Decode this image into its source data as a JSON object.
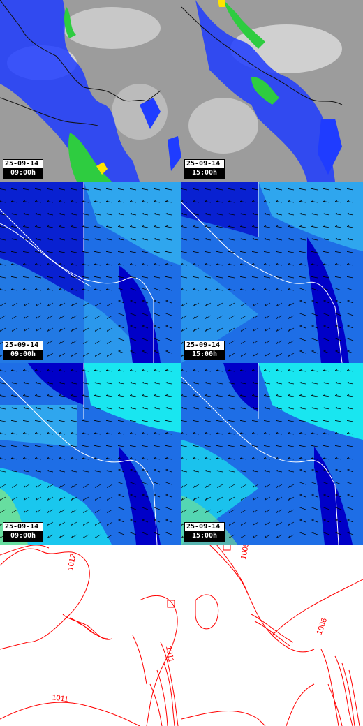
{
  "panels": [
    {
      "row": 0,
      "col": 0,
      "kind": "precip",
      "date": "25-09-14",
      "time": "09:00h"
    },
    {
      "row": 0,
      "col": 1,
      "kind": "precip",
      "date": "25-09-14",
      "time": "15:00h"
    },
    {
      "row": 1,
      "col": 0,
      "kind": "wind_low",
      "date": "25-09-14",
      "time": "09:00h"
    },
    {
      "row": 1,
      "col": 1,
      "kind": "wind_low",
      "date": "25-09-14",
      "time": "15:00h"
    },
    {
      "row": 2,
      "col": 0,
      "kind": "wind_high",
      "date": "25-09-14",
      "time": "09:00h"
    },
    {
      "row": 2,
      "col": 1,
      "kind": "wind_high",
      "date": "25-09-14",
      "time": "15:00h"
    },
    {
      "row": 3,
      "col": 0,
      "kind": "pressure",
      "contour_labels": [
        "1012",
        "1011",
        "1011"
      ]
    },
    {
      "row": 3,
      "col": 1,
      "kind": "pressure",
      "contour_labels": [
        "1009",
        "1006"
      ]
    }
  ],
  "colors": {
    "cloud_gray": "#9a9a9a",
    "precip_blue": "#1f3cff",
    "precip_green": "#2ecc40",
    "precip_yellow": "#ffe400",
    "wind_dark": "#0000c8",
    "wind_mid": "#1e6ee6",
    "wind_light": "#33b4f0",
    "wind_cyan": "#19e6f0",
    "coast": "#ffffff",
    "isobar": "#ff0000"
  }
}
